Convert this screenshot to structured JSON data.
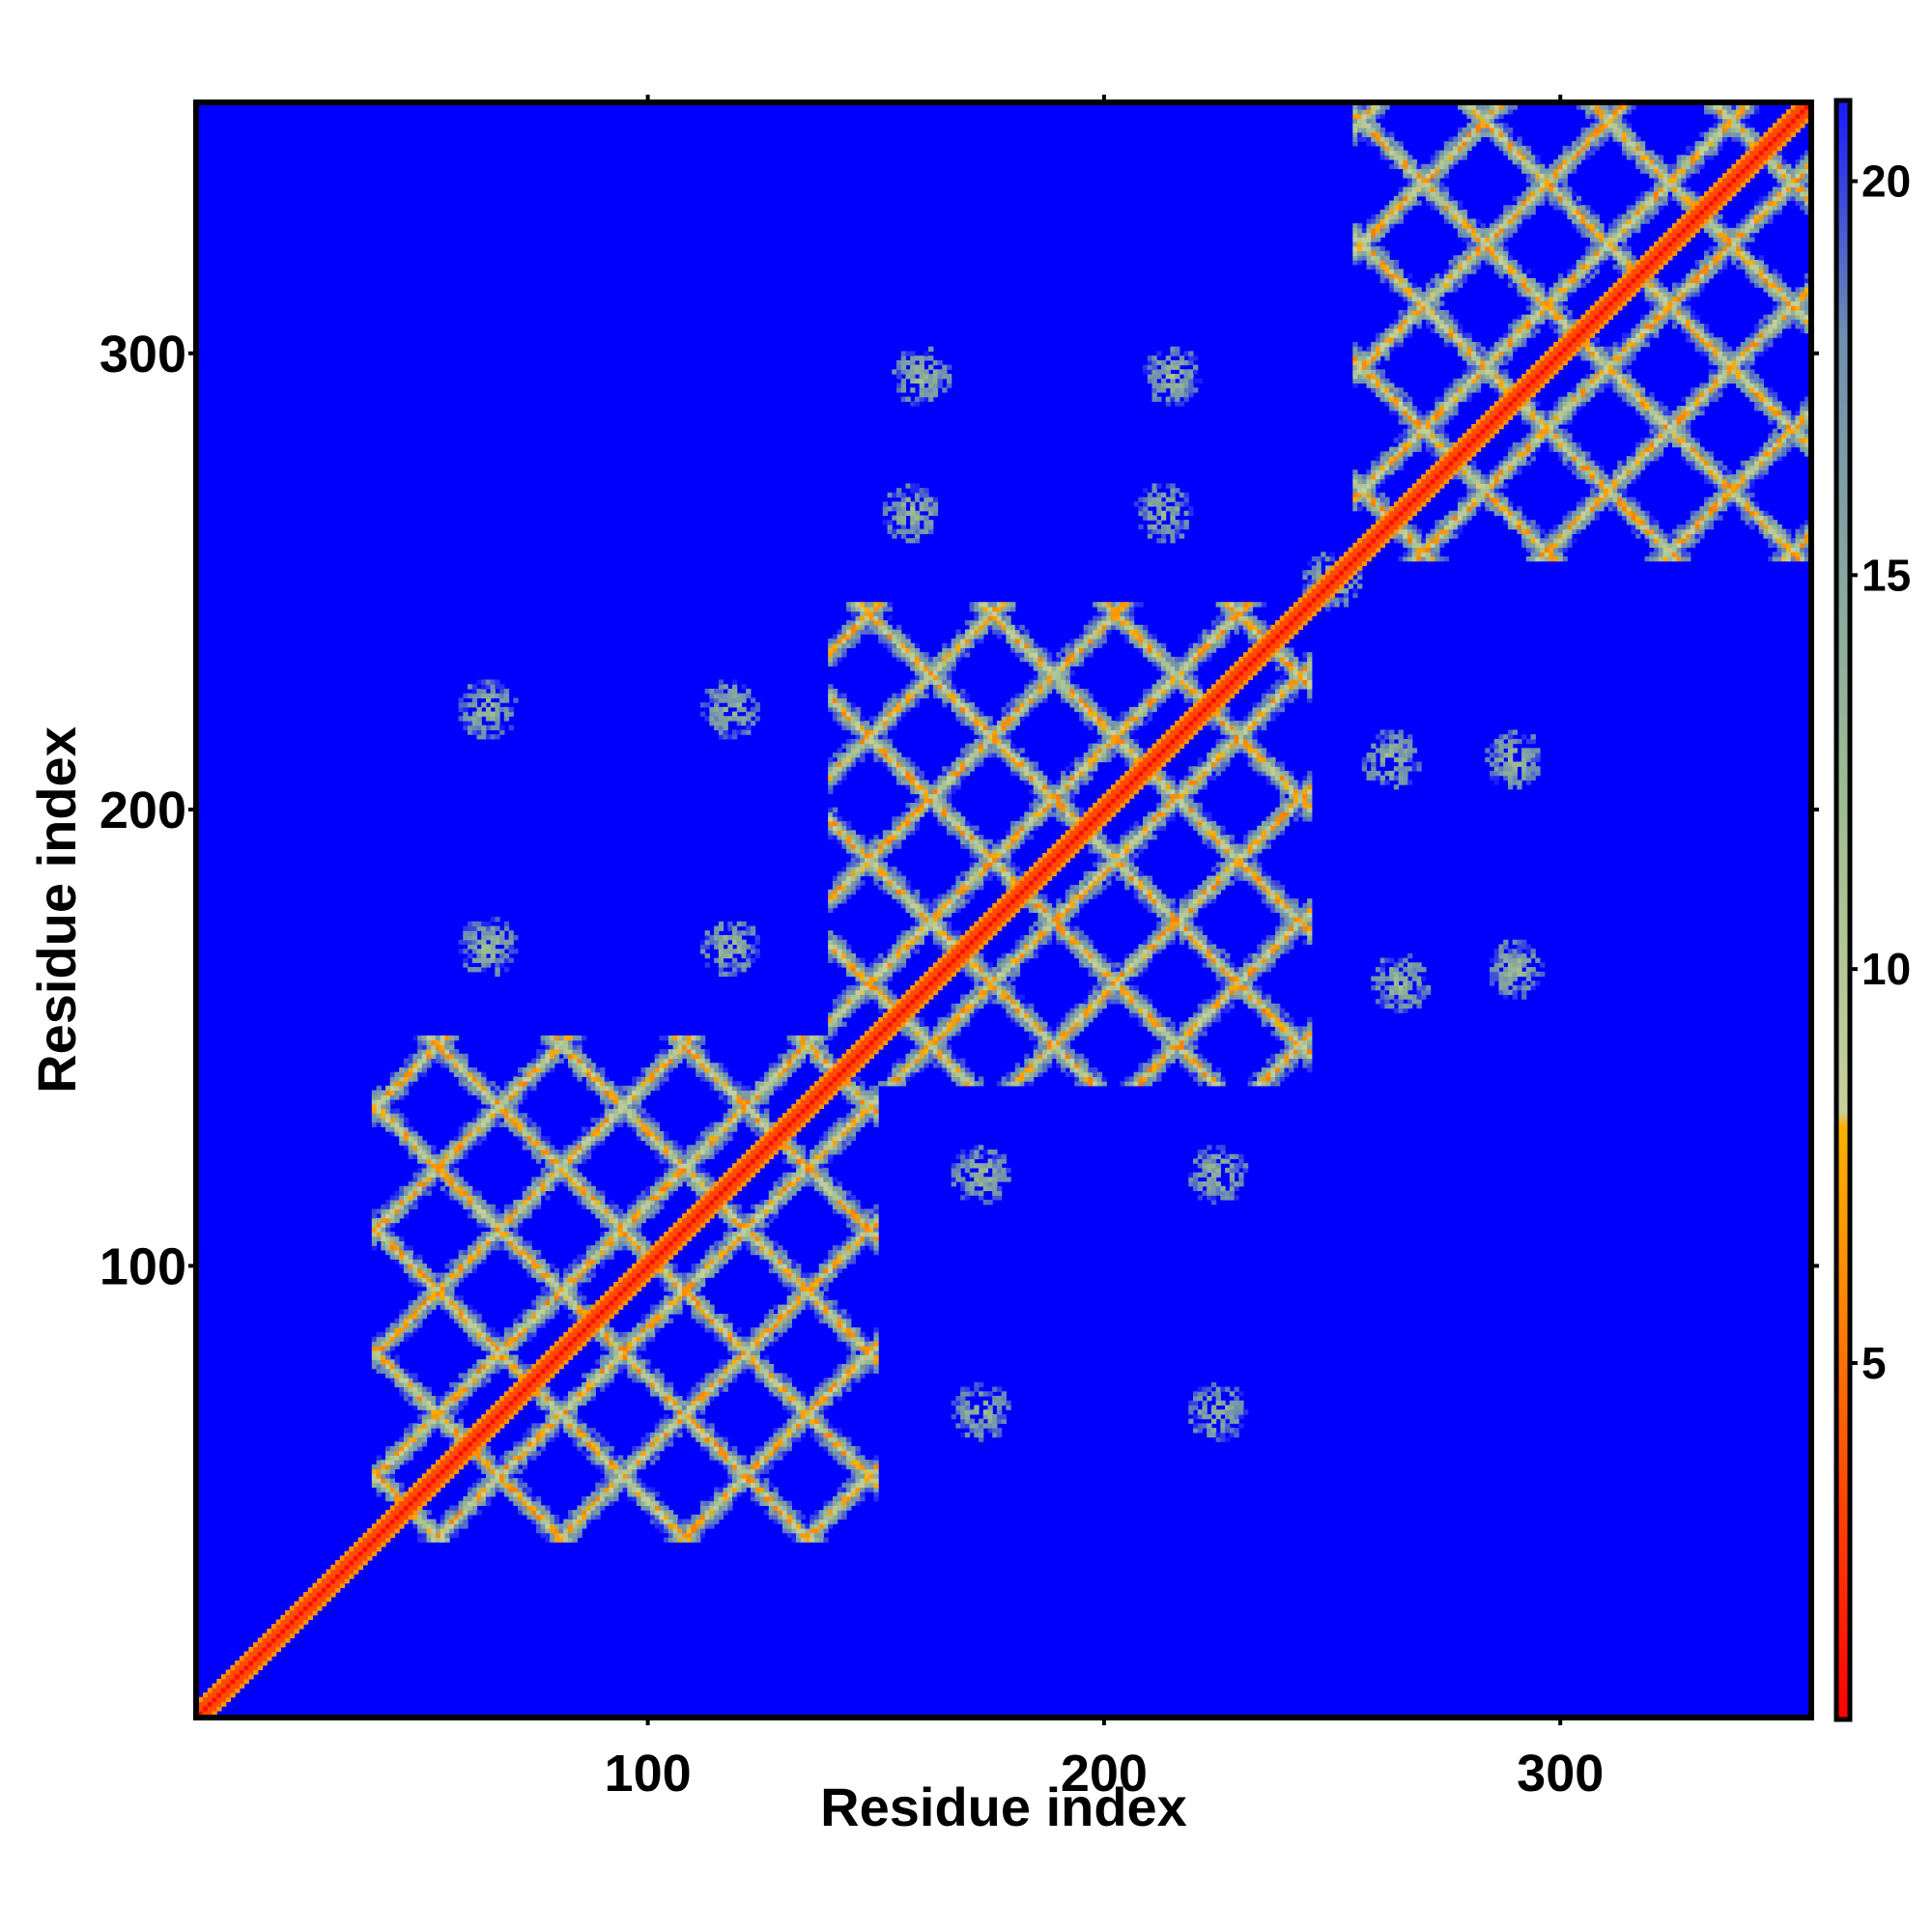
{
  "chart_data": {
    "type": "heatmap",
    "title": "",
    "xlabel": "Residue index",
    "ylabel": "Residue index",
    "xlim": [
      1,
      355
    ],
    "ylim": [
      1,
      355
    ],
    "x_ticks": [
      100,
      200,
      300
    ],
    "y_ticks": [
      100,
      200,
      300
    ],
    "x_tick_labels": [
      "100",
      "200",
      "300"
    ],
    "y_tick_labels": [
      "100",
      "200",
      "300"
    ],
    "background_color": "#0000ff",
    "colorbar": {
      "range": [
        0.5,
        21.0
      ],
      "ticks": [
        5,
        10,
        15,
        20
      ],
      "tick_labels": [
        "5",
        "10",
        "15",
        "20"
      ],
      "stops": [
        {
          "value": 0.5,
          "color": "#ff0000"
        },
        {
          "value": 6.0,
          "color": "#ff8a00"
        },
        {
          "value": 8.0,
          "color": "#ffb000"
        },
        {
          "value": 8.2,
          "color": "#c7d09a"
        },
        {
          "value": 12.0,
          "color": "#9fbd90"
        },
        {
          "value": 18.0,
          "color": "#6f8fb0"
        },
        {
          "value": 21.0,
          "color": "#1a1aff"
        }
      ]
    },
    "diagonal": {
      "from": 1,
      "to": 355,
      "value": 1.0
    },
    "domains": [
      {
        "start": 40,
        "end": 150
      },
      {
        "start": 140,
        "end": 245
      },
      {
        "start": 255,
        "end": 355
      }
    ],
    "contact_clusters": [
      {
        "x": 65,
        "y": 222
      },
      {
        "x": 65,
        "y": 170
      },
      {
        "x": 118,
        "y": 222
      },
      {
        "x": 118,
        "y": 170
      },
      {
        "x": 173,
        "y": 120
      },
      {
        "x": 173,
        "y": 68
      },
      {
        "x": 225,
        "y": 120
      },
      {
        "x": 225,
        "y": 68
      },
      {
        "x": 160,
        "y": 295
      },
      {
        "x": 215,
        "y": 295
      },
      {
        "x": 158,
        "y": 265
      },
      {
        "x": 213,
        "y": 265
      },
      {
        "x": 263,
        "y": 211
      },
      {
        "x": 290,
        "y": 211
      },
      {
        "x": 265,
        "y": 162
      },
      {
        "x": 290,
        "y": 165
      },
      {
        "x": 250,
        "y": 250
      }
    ]
  }
}
